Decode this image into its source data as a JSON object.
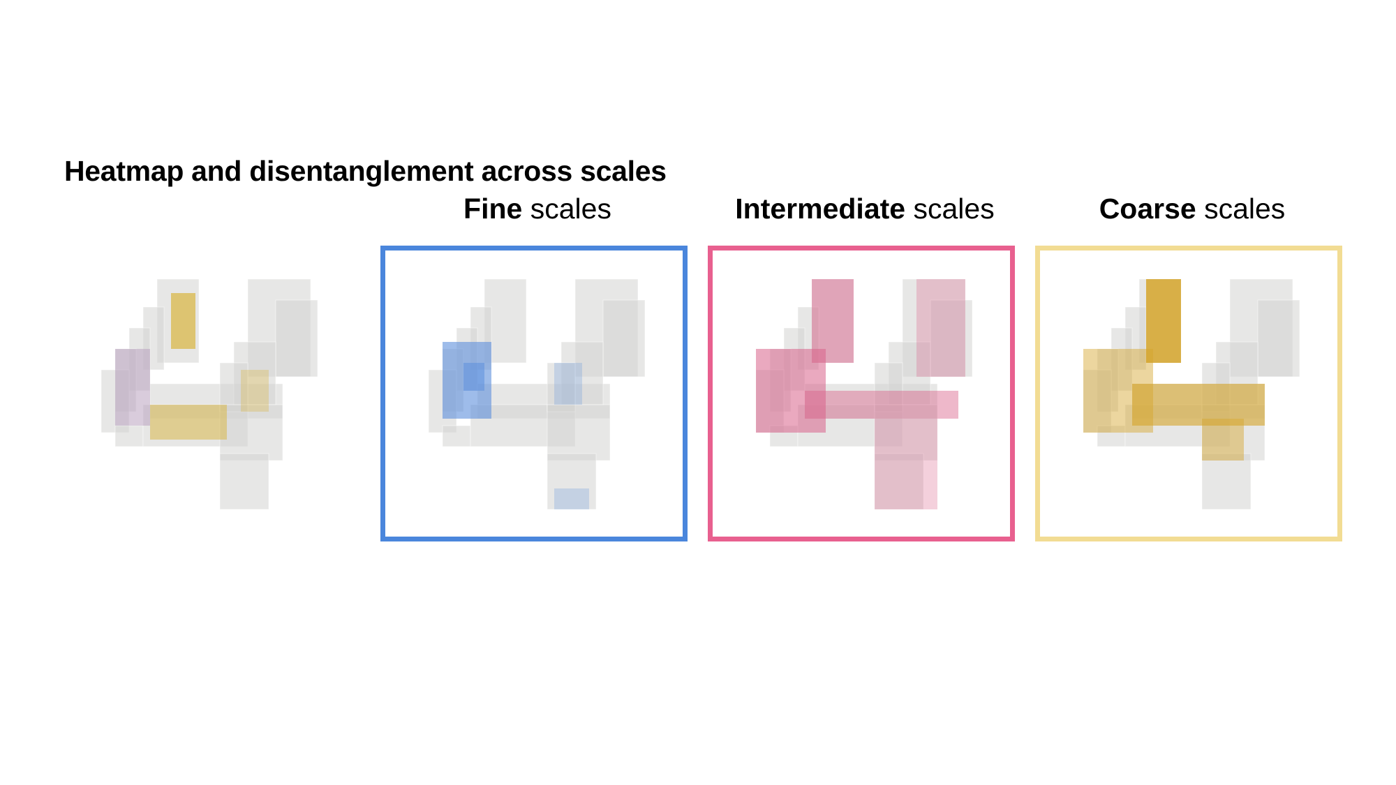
{
  "title": "Heatmap and disentanglement across scales",
  "panels": [
    {
      "strong": "Fine",
      "light": " scales",
      "color": "#4a86dc"
    },
    {
      "strong": "Intermediate",
      "light": " scales",
      "color": "#e8608f"
    },
    {
      "strong": "Coarse",
      "light": " scales",
      "color": "#f2dc93"
    }
  ],
  "heat_colors": {
    "original_warm": "#d9b84a",
    "original_cool": "#b9a3bf",
    "fine": "#5d8fdc",
    "intermediate": "#d9628a",
    "coarse": "#d5a52a",
    "base": "#d4d4d2"
  }
}
